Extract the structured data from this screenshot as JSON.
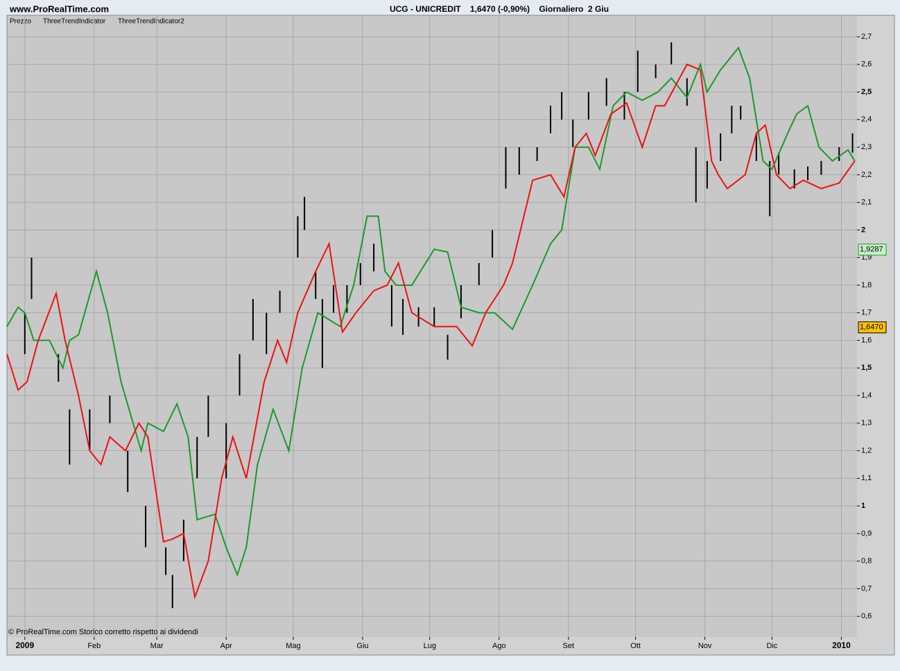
{
  "chart_data": {
    "type": "ohlc-line",
    "site": "www.ProRealTime.com",
    "title": "UCG - UNICREDIT    1,6470 (-0,90%)    Giornaliero  2 Giu",
    "price_label": "Prezzo",
    "footer": "© ProRealTime.com  Storico corretto rispetto ai dividendi",
    "xlim": [
      -8,
      372
    ],
    "ylim": [
      0.525,
      2.778
    ],
    "grid": true,
    "xticks": [
      {
        "value": 0,
        "label": "2009"
      },
      {
        "value": 31,
        "label": "Feb"
      },
      {
        "value": 59,
        "label": "Mar"
      },
      {
        "value": 90,
        "label": "Apr"
      },
      {
        "value": 120,
        "label": "Mag"
      },
      {
        "value": 151,
        "label": "Giu"
      },
      {
        "value": 181,
        "label": "Lug"
      },
      {
        "value": 212,
        "label": "Ago"
      },
      {
        "value": 243,
        "label": "Set"
      },
      {
        "value": 273,
        "label": "Ott"
      },
      {
        "value": 304,
        "label": "Nov"
      },
      {
        "value": 334,
        "label": "Dic"
      },
      {
        "value": 365,
        "label": "2010"
      }
    ],
    "yticks": [
      {
        "value": 0.6,
        "label": "0,6"
      },
      {
        "value": 0.7,
        "label": "0,7"
      },
      {
        "value": 0.8,
        "label": "0,8"
      },
      {
        "value": 0.9,
        "label": "0,9"
      },
      1,
      {
        "value": 1.1,
        "label": "1,1"
      },
      {
        "value": 1.2,
        "label": "1,2"
      },
      {
        "value": 1.3,
        "label": "1,3"
      },
      {
        "value": 1.4,
        "label": "1,4"
      },
      {
        "value": 1.5,
        "label": "1,5"
      },
      {
        "value": 1.6,
        "label": "1,6"
      },
      {
        "value": 1.7,
        "label": "1,7"
      },
      {
        "value": 1.8,
        "label": "1,8"
      },
      {
        "value": 1.9,
        "label": "1,9"
      },
      2,
      {
        "value": 2.1,
        "label": "2,1"
      },
      {
        "value": 2.2,
        "label": "2,2"
      },
      {
        "value": 2.3,
        "label": "2,3"
      },
      {
        "value": 2.4,
        "label": "2,4"
      },
      {
        "value": 2.5,
        "label": "2,5"
      },
      {
        "value": 2.6,
        "label": "2,6"
      },
      {
        "value": 2.7,
        "label": "2,7"
      }
    ],
    "bars": {
      "color": "#000000",
      "x": [
        0,
        3,
        15,
        20,
        29,
        38,
        46,
        54,
        63,
        66,
        71,
        77,
        82,
        90,
        96,
        102,
        108,
        114,
        122,
        125,
        130,
        133,
        138,
        144,
        150,
        156,
        164,
        169,
        176,
        183,
        189,
        195,
        203,
        209,
        215,
        221,
        229,
        235,
        240,
        245,
        252,
        260,
        268,
        274,
        282,
        289,
        296,
        300,
        305,
        311,
        316,
        320,
        327,
        333,
        337,
        344,
        350,
        356,
        364,
        370
      ],
      "high": [
        1.7,
        1.9,
        1.55,
        1.35,
        1.35,
        1.4,
        1.2,
        1.0,
        0.85,
        0.75,
        0.95,
        1.25,
        1.4,
        1.3,
        1.55,
        1.75,
        1.7,
        1.78,
        2.05,
        2.12,
        1.85,
        1.75,
        1.8,
        1.8,
        1.88,
        1.95,
        1.8,
        1.75,
        1.72,
        1.72,
        1.62,
        1.8,
        1.88,
        2.0,
        2.3,
        2.3,
        2.3,
        2.45,
        2.5,
        2.4,
        2.5,
        2.55,
        2.5,
        2.65,
        2.6,
        2.68,
        2.55,
        2.3,
        2.25,
        2.35,
        2.45,
        2.45,
        2.35,
        2.25,
        2.28,
        2.22,
        2.23,
        2.25,
        2.3,
        2.35
      ],
      "low": [
        1.55,
        1.75,
        1.45,
        1.15,
        1.2,
        1.3,
        1.05,
        0.85,
        0.75,
        0.63,
        0.8,
        1.1,
        1.25,
        1.1,
        1.4,
        1.6,
        1.55,
        1.7,
        1.9,
        2.0,
        1.75,
        1.5,
        1.7,
        1.7,
        1.8,
        1.85,
        1.65,
        1.62,
        1.65,
        1.65,
        1.53,
        1.68,
        1.8,
        1.9,
        2.15,
        2.2,
        2.25,
        2.35,
        2.4,
        2.3,
        2.4,
        2.45,
        2.4,
        2.5,
        2.55,
        2.6,
        2.45,
        2.1,
        2.15,
        2.25,
        2.35,
        2.4,
        2.25,
        2.05,
        2.2,
        2.15,
        2.18,
        2.2,
        2.25,
        2.28
      ]
    },
    "series": [
      {
        "name": "ThreeTrendIndicator",
        "color": "#1a9a2a",
        "x": [
          -8,
          -3,
          0,
          4,
          11,
          17,
          20,
          24,
          32,
          37,
          43,
          52,
          55,
          62,
          68,
          73,
          77,
          85,
          90,
          95,
          99,
          104,
          111,
          118,
          124,
          131,
          141,
          147,
          153,
          158,
          161,
          166,
          173,
          183,
          189,
          195,
          203,
          210,
          218,
          227,
          235,
          240,
          246,
          252,
          257,
          263,
          269,
          276,
          283,
          289,
          296,
          302,
          305,
          311,
          319,
          324,
          330,
          334,
          341,
          345,
          350,
          355,
          361,
          368,
          371
        ],
        "values": [
          1.65,
          1.72,
          1.7,
          1.6,
          1.6,
          1.5,
          1.6,
          1.62,
          1.85,
          1.7,
          1.45,
          1.2,
          1.3,
          1.27,
          1.37,
          1.25,
          0.95,
          0.97,
          0.85,
          0.75,
          0.85,
          1.15,
          1.35,
          1.2,
          1.5,
          1.7,
          1.65,
          1.8,
          2.05,
          2.05,
          1.85,
          1.8,
          1.8,
          1.93,
          1.92,
          1.72,
          1.7,
          1.7,
          1.64,
          1.8,
          1.95,
          2.0,
          2.3,
          2.3,
          2.22,
          2.45,
          2.5,
          2.47,
          2.5,
          2.55,
          2.48,
          2.6,
          2.5,
          2.58,
          2.66,
          2.55,
          2.25,
          2.22,
          2.35,
          2.42,
          2.45,
          2.3,
          2.25,
          2.29,
          2.25
        ]
      },
      {
        "name": "ThreeTrendIndicator2",
        "color": "#ee1111",
        "x": [
          -8,
          -3,
          1,
          6,
          14,
          18,
          24,
          29,
          34,
          38,
          45,
          51,
          55,
          62,
          66,
          71,
          76,
          82,
          88,
          93,
          99,
          107,
          113,
          117,
          122,
          130,
          136,
          142,
          148,
          156,
          162,
          167,
          173,
          183,
          193,
          200,
          206,
          214,
          218,
          227,
          235,
          241,
          246,
          251,
          255,
          262,
          269,
          276,
          282,
          286,
          296,
          302,
          307,
          310,
          314,
          322,
          327,
          331,
          336,
          342,
          348,
          356,
          364,
          371
        ],
        "values": [
          1.55,
          1.42,
          1.45,
          1.6,
          1.77,
          1.6,
          1.4,
          1.2,
          1.15,
          1.25,
          1.2,
          1.3,
          1.25,
          0.87,
          0.88,
          0.9,
          0.67,
          0.8,
          1.1,
          1.25,
          1.1,
          1.45,
          1.6,
          1.52,
          1.7,
          1.85,
          1.95,
          1.63,
          1.7,
          1.78,
          1.8,
          1.88,
          1.7,
          1.65,
          1.65,
          1.58,
          1.7,
          1.8,
          1.88,
          2.18,
          2.2,
          2.12,
          2.3,
          2.35,
          2.27,
          2.42,
          2.46,
          2.3,
          2.45,
          2.45,
          2.6,
          2.58,
          2.25,
          2.2,
          2.15,
          2.2,
          2.35,
          2.38,
          2.2,
          2.15,
          2.18,
          2.15,
          2.17,
          2.25
        ]
      }
    ],
    "markers": [
      {
        "value": 1.9287,
        "label": "1,9287",
        "color": "#c8f0c8",
        "border": "#1a9a2a"
      },
      {
        "value": 1.647,
        "label": "1,6470",
        "color": "#ffc000",
        "border": "#000000"
      }
    ]
  }
}
